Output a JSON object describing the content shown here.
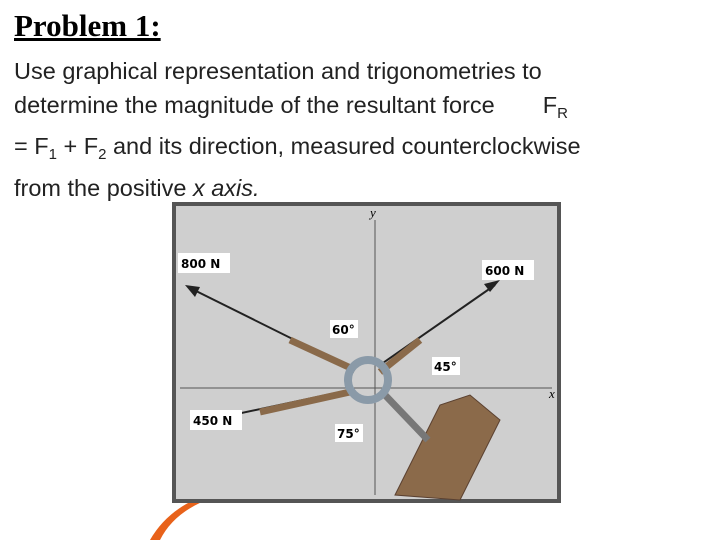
{
  "title": "Problem 1:",
  "body": {
    "line1": "Use graphical representation and trigonometries to",
    "line2": "determine the magnitude of the resultant force",
    "resultant": "F",
    "resultant_sub": "R",
    "eq_start": "= F",
    "sub1": "1",
    "eq_plus": " + F",
    "sub2": "2",
    "line3_end": " and its direction, measured counterclockwise",
    "line4": "from the positive ",
    "axis_name": "x axis."
  },
  "figure": {
    "y_axis": "y",
    "x_axis": "x",
    "force_800": "800 N",
    "force_600": "600 N",
    "force_450": "450 N",
    "angle_60": "60°",
    "angle_45": "45°",
    "angle_75": "75°"
  }
}
